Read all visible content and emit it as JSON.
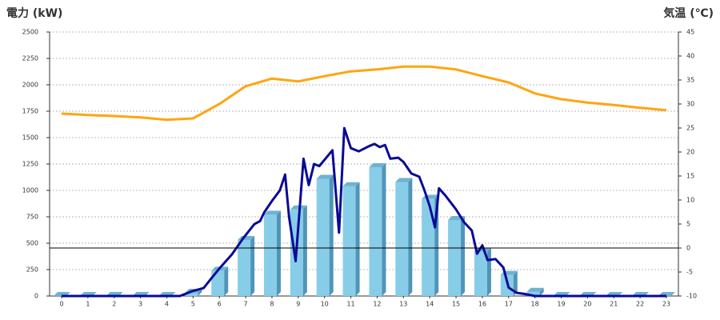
{
  "chart_data": {
    "type": "bar-line",
    "title_left": "電力 (kW)",
    "title_right": "気温 (℃)",
    "title_left_color": "#1f6fb5",
    "title_right_color": "#ee8a1a",
    "categories": [
      "0",
      "1",
      "2",
      "3",
      "4",
      "5",
      "6",
      "7",
      "8",
      "9",
      "10",
      "11",
      "12",
      "13",
      "14",
      "15",
      "16",
      "17",
      "18",
      "19",
      "20",
      "21",
      "22",
      "23"
    ],
    "ylim": [
      0,
      2500
    ],
    "yticks": [
      0,
      250,
      500,
      750,
      1000,
      1250,
      1500,
      1750,
      2000,
      2250,
      2500
    ],
    "y2lim": [
      -10,
      45
    ],
    "y2ticks": [
      -10,
      -5,
      0,
      5,
      10,
      15,
      20,
      25,
      30,
      35,
      40,
      45
    ],
    "grid": true,
    "reference_line": {
      "axis": "y2",
      "value": 0
    },
    "series": [
      {
        "type": "bar",
        "color": "#87cde8",
        "values": [
          0,
          0,
          0,
          0,
          0,
          30,
          240,
          530,
          770,
          820,
          1110,
          1040,
          1220,
          1080,
          920,
          720,
          420,
          200,
          40,
          0,
          0,
          0,
          0,
          0
        ]
      },
      {
        "type": "line",
        "color": "#0a0a96",
        "x": [
          0,
          4.5,
          4.96,
          5.4,
          5.72,
          6.0,
          6.48,
          6.9,
          7.33,
          7.55,
          7.7,
          8.0,
          8.3,
          8.5,
          8.65,
          8.9,
          9.2,
          9.4,
          9.6,
          9.8,
          10.0,
          10.3,
          10.55,
          10.75,
          11.0,
          11.3,
          11.7,
          11.9,
          12.1,
          12.3,
          12.5,
          12.8,
          13.0,
          13.3,
          13.6,
          13.8,
          14.0,
          14.2,
          14.35,
          14.6,
          15.0,
          15.3,
          15.6,
          15.8,
          16.0,
          16.2,
          16.5,
          16.8,
          17.0,
          17.3,
          17.6,
          18.0,
          23
        ],
        "values": [
          0,
          0,
          45,
          75,
          175,
          260,
          395,
          545,
          680,
          710,
          790,
          900,
          1000,
          1150,
          750,
          330,
          1300,
          1050,
          1250,
          1230,
          1290,
          1380,
          600,
          1590,
          1400,
          1370,
          1420,
          1440,
          1410,
          1430,
          1300,
          1310,
          1270,
          1160,
          1130,
          1000,
          850,
          650,
          1020,
          950,
          820,
          700,
          620,
          400,
          480,
          340,
          350,
          270,
          80,
          30,
          20,
          0,
          0
        ]
      },
      {
        "type": "line",
        "axis": "y2",
        "color": "#ffa510",
        "values": [
          28,
          27.7,
          27.5,
          27.2,
          26.7,
          27,
          30,
          33.7,
          35.3,
          34.7,
          35.8,
          36.8,
          37.2,
          37.8,
          37.8,
          37.2,
          35.8,
          34.5,
          32.2,
          31,
          30.3,
          29.8,
          29.2,
          28.7
        ]
      }
    ]
  }
}
